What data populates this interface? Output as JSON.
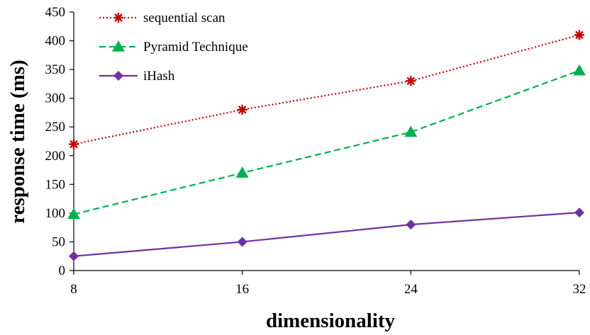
{
  "chart_data": {
    "type": "line",
    "title": "",
    "xlabel": "dimensionality",
    "ylabel": "response time (ms)",
    "x": [
      8,
      16,
      24,
      32
    ],
    "ylim": [
      0,
      450
    ],
    "yticks": [
      0,
      50,
      100,
      150,
      200,
      250,
      300,
      350,
      400,
      450
    ],
    "grid": false,
    "legend_position": "top-left",
    "series": [
      {
        "name": "sequential scan",
        "values": [
          220,
          280,
          330,
          410
        ],
        "color": "#C00000",
        "line_style": "dotted",
        "marker": "asterisk"
      },
      {
        "name": "Pyramid Technique",
        "values": [
          98,
          170,
          241,
          348
        ],
        "color": "#00B050",
        "line_style": "dashed",
        "marker": "triangle"
      },
      {
        "name": "iHash",
        "values": [
          25,
          50,
          80,
          101
        ],
        "color": "#7030A0",
        "line_style": "solid",
        "marker": "diamond"
      }
    ]
  }
}
